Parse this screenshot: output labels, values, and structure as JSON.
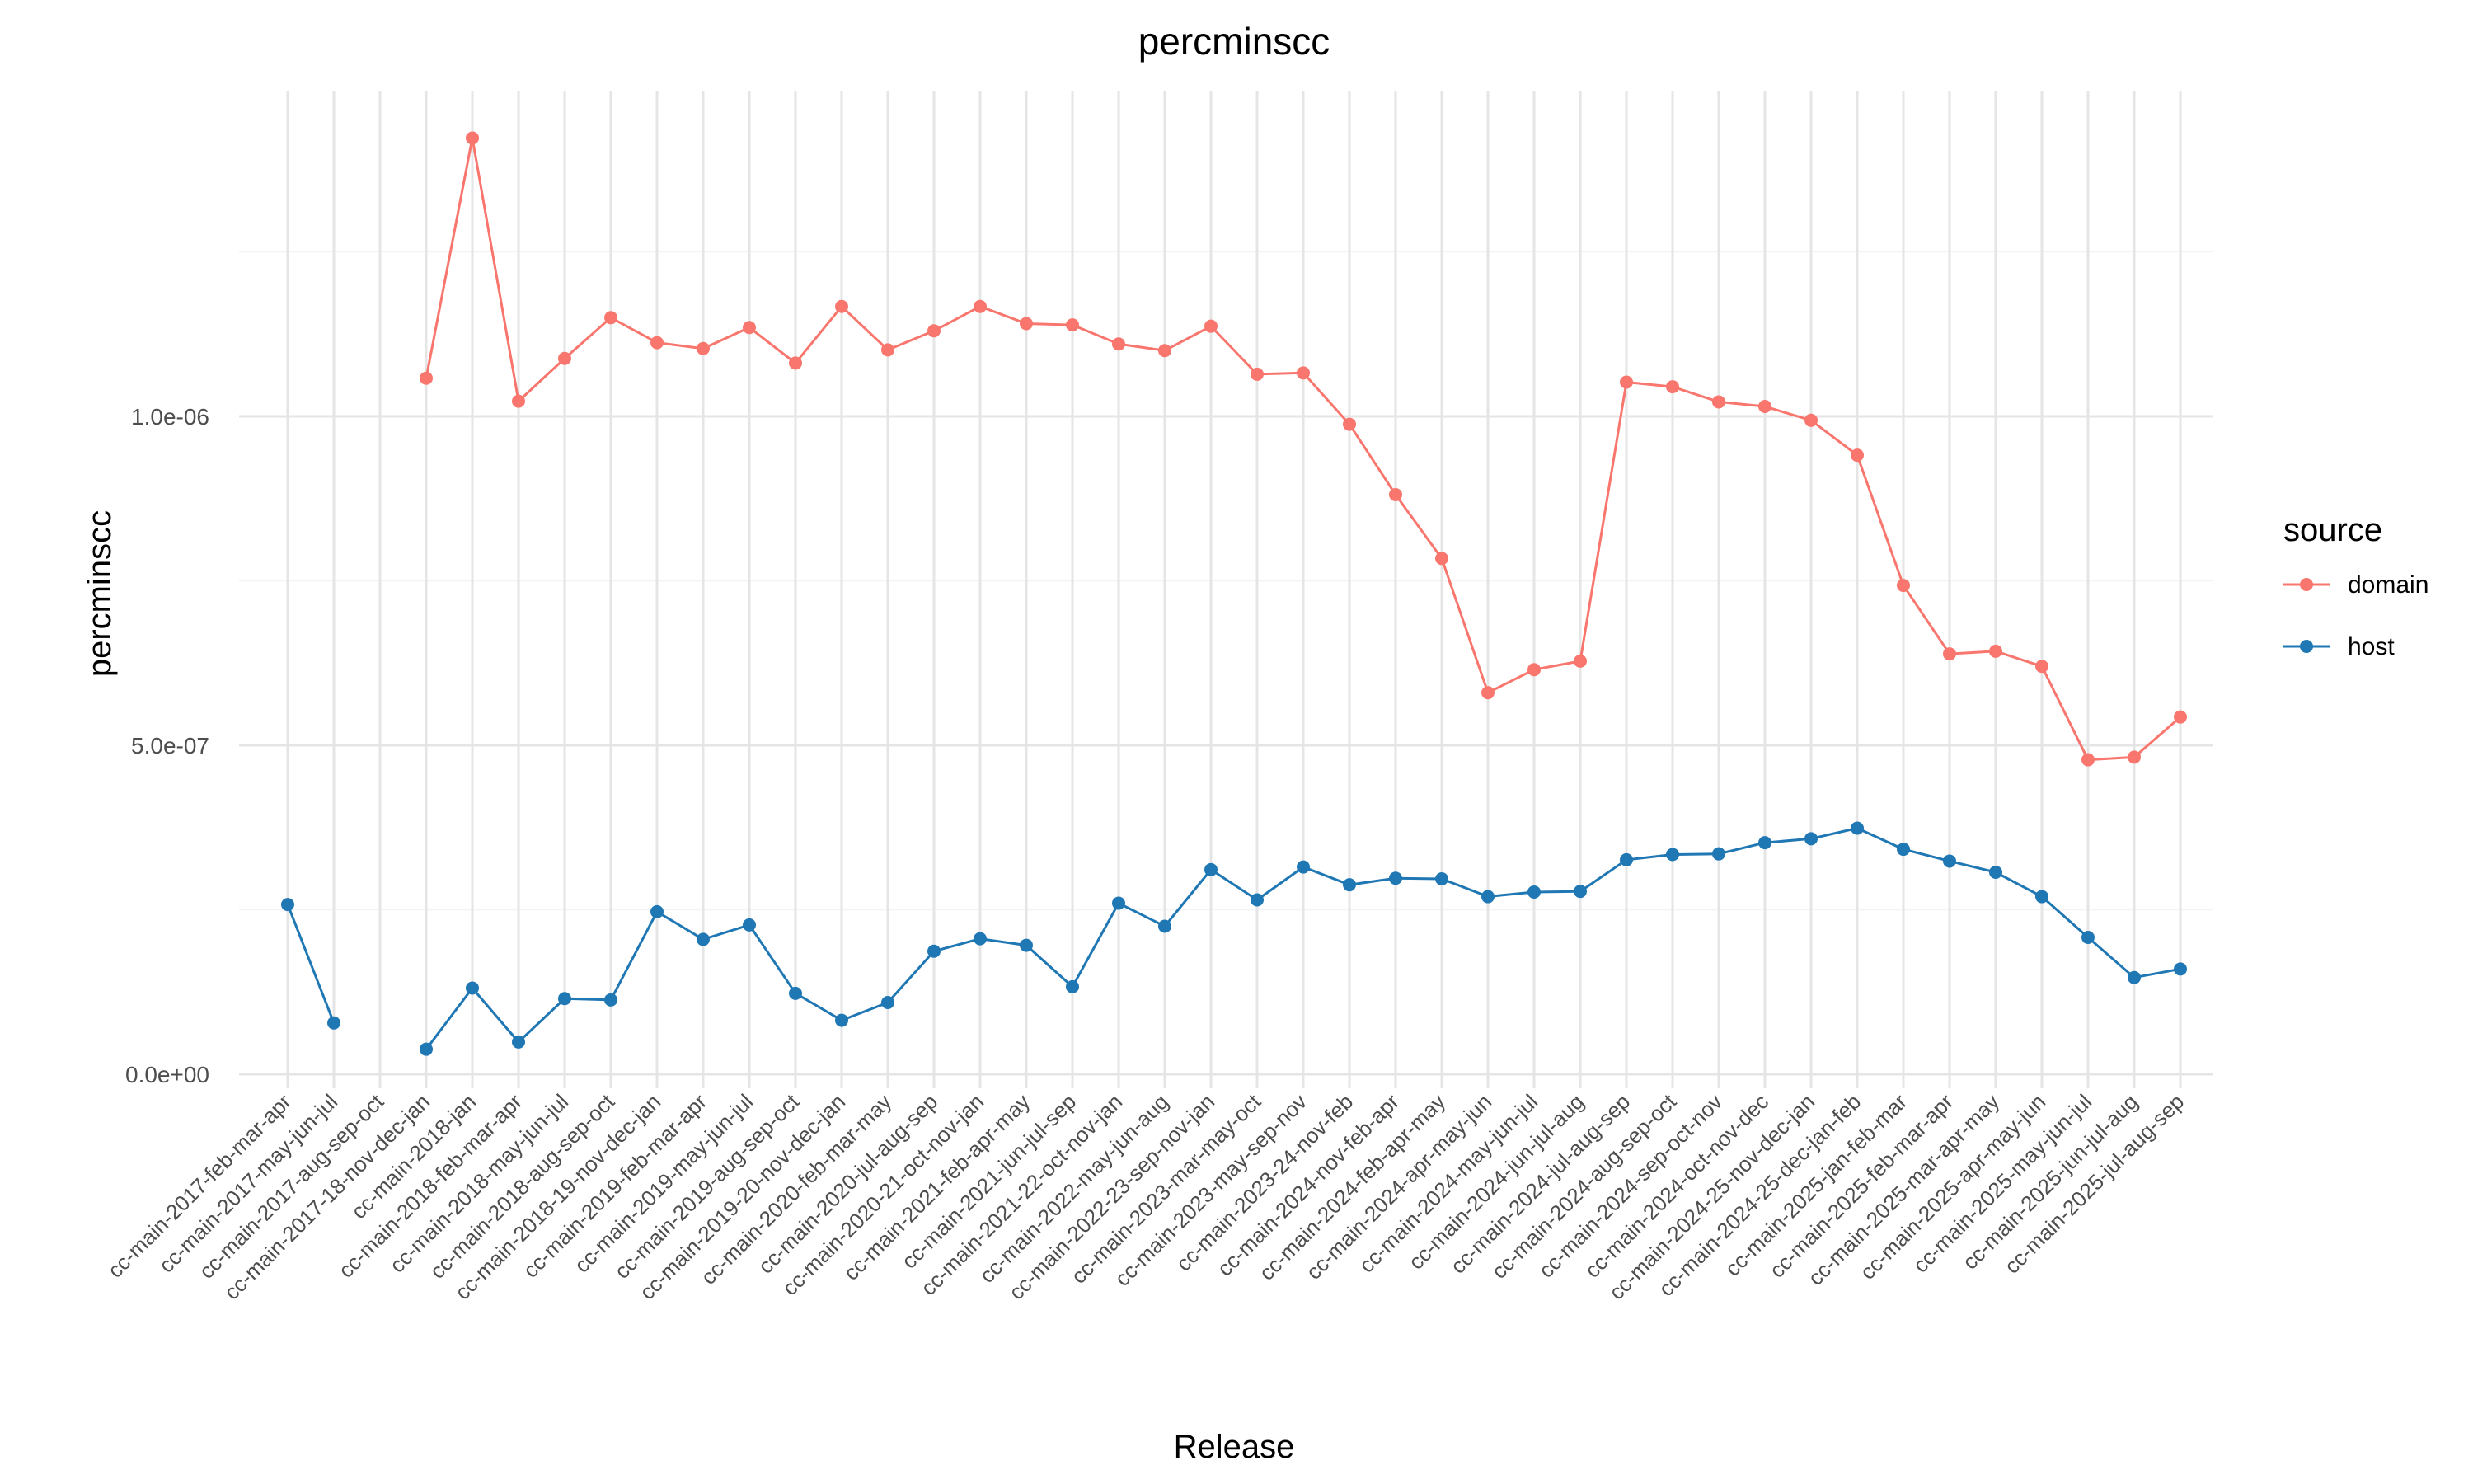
{
  "chart_data": {
    "type": "line",
    "title": "percminscc",
    "xlabel": "Release",
    "ylabel": "percminscc",
    "ylim": [
      0,
      1.43e-06
    ],
    "y_ticks": [
      {
        "value": 0,
        "label": "0.0e+00"
      },
      {
        "value": 5e-07,
        "label": "5.0e-07"
      },
      {
        "value": 1e-06,
        "label": "1.0e-06"
      }
    ],
    "grid": true,
    "legend": {
      "title": "source",
      "position": "right"
    },
    "categories": [
      "cc-main-2017-feb-mar-apr",
      "cc-main-2017-may-jun-jul",
      "cc-main-2017-aug-sep-oct",
      "cc-main-2017-18-nov-dec-jan",
      "cc-main-2018-jan",
      "cc-main-2018-feb-mar-apr",
      "cc-main-2018-may-jun-jul",
      "cc-main-2018-aug-sep-oct",
      "cc-main-2018-19-nov-dec-jan",
      "cc-main-2019-feb-mar-apr",
      "cc-main-2019-may-jun-jul",
      "cc-main-2019-aug-sep-oct",
      "cc-main-2019-20-nov-dec-jan",
      "cc-main-2020-feb-mar-may",
      "cc-main-2020-jul-aug-sep",
      "cc-main-2020-21-oct-nov-jan",
      "cc-main-2021-feb-apr-may",
      "cc-main-2021-jun-jul-sep",
      "cc-main-2021-22-oct-nov-jan",
      "cc-main-2022-may-jun-aug",
      "cc-main-2022-23-sep-nov-jan",
      "cc-main-2023-mar-may-oct",
      "cc-main-2023-may-sep-nov",
      "cc-main-2023-24-nov-feb",
      "cc-main-2024-nov-feb-apr",
      "cc-main-2024-feb-apr-may",
      "cc-main-2024-apr-may-jun",
      "cc-main-2024-may-jun-jul",
      "cc-main-2024-jun-jul-aug",
      "cc-main-2024-jul-aug-sep",
      "cc-main-2024-aug-sep-oct",
      "cc-main-2024-sep-oct-nov",
      "cc-main-2024-oct-nov-dec",
      "cc-main-2024-25-nov-dec-jan",
      "cc-main-2024-25-dec-jan-feb",
      "cc-main-2025-jan-feb-mar",
      "cc-main-2025-feb-mar-apr",
      "cc-main-2025-mar-apr-may",
      "cc-main-2025-apr-may-jun",
      "cc-main-2025-may-jun-jul",
      "cc-main-2025-jun-jul-aug",
      "cc-main-2025-jul-aug-sep"
    ],
    "series": [
      {
        "name": "domain",
        "color": "#F8766D",
        "values": [
          null,
          null,
          null,
          1.058e-06,
          1.423e-06,
          1.023e-06,
          1.088e-06,
          1.15e-06,
          1.112e-06,
          1.103e-06,
          1.135e-06,
          1.081e-06,
          1.167e-06,
          1.101e-06,
          1.13e-06,
          1.167e-06,
          1.141e-06,
          1.139e-06,
          1.11e-06,
          1.1e-06,
          1.137e-06,
          1.064e-06,
          1.066e-06,
          9.88e-07,
          8.81e-07,
          7.84e-07,
          5.8e-07,
          6.15e-07,
          6.28e-07,
          1.052e-06,
          1.045e-06,
          1.022e-06,
          1.015e-06,
          9.94e-07,
          9.41e-07,
          7.43e-07,
          6.39e-07,
          6.43e-07,
          6.2e-07,
          4.78e-07,
          4.82e-07,
          5.43e-07
        ]
      },
      {
        "name": "host",
        "color": "#1F77B4",
        "values": [
          2.58e-07,
          7.8e-08,
          null,
          3.8e-08,
          1.31e-07,
          4.9e-08,
          1.15e-07,
          1.13e-07,
          2.47e-07,
          2.05e-07,
          2.27e-07,
          1.23e-07,
          8.2e-08,
          1.09e-07,
          1.87e-07,
          2.06e-07,
          1.96e-07,
          1.33e-07,
          2.6e-07,
          2.25e-07,
          3.11e-07,
          2.65e-07,
          3.15e-07,
          2.88e-07,
          2.98e-07,
          2.97e-07,
          2.7e-07,
          2.77e-07,
          2.78e-07,
          3.26e-07,
          3.34e-07,
          3.35e-07,
          3.52e-07,
          3.58e-07,
          3.74e-07,
          3.42e-07,
          3.24e-07,
          3.07e-07,
          2.7e-07,
          2.08e-07,
          1.47e-07,
          1.6e-07
        ]
      }
    ]
  }
}
